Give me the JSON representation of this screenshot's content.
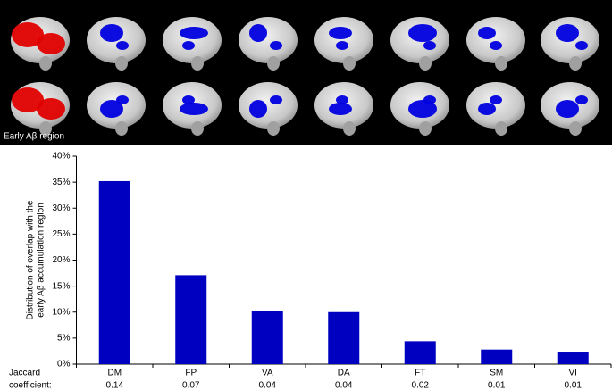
{
  "chart_data": {
    "type": "bar",
    "image_label": "Early Aβ region",
    "ylabel": [
      "Distribution of overlap with the",
      "early Aβ accumulation region"
    ],
    "categories": [
      "DM",
      "FP",
      "VA",
      "DA",
      "FT",
      "SM",
      "VI"
    ],
    "values": [
      35.2,
      17.1,
      10.2,
      10.0,
      4.4,
      2.8,
      2.4
    ],
    "color": "#0000c0",
    "jaccard_label": [
      "Jaccard",
      "coefficient:"
    ],
    "jaccard_values": [
      0.14,
      0.07,
      0.04,
      0.04,
      0.02,
      0.01,
      0.01
    ],
    "ylim": [
      0,
      40
    ],
    "yticks": [
      {
        "value": 0,
        "label": "0%"
      },
      {
        "value": 5,
        "label": "5%"
      },
      {
        "value": 10,
        "label": "10%"
      },
      {
        "value": 15,
        "label": "15%"
      },
      {
        "value": 20,
        "label": "20%"
      },
      {
        "value": 25,
        "label": "25%"
      },
      {
        "value": 30,
        "label": "30%"
      },
      {
        "value": 35,
        "label": "35%"
      },
      {
        "value": 40,
        "label": "40%"
      }
    ]
  }
}
